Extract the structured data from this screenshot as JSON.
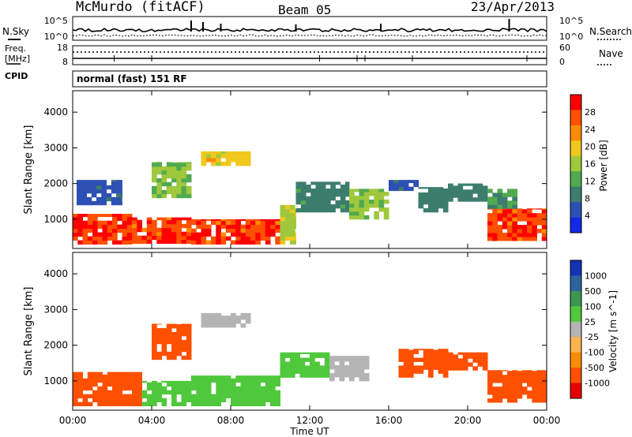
{
  "header": {
    "station": "McMurdo (fitACF)",
    "beam": "Beam 05",
    "date": "23/Apr/2013"
  },
  "top_panels": {
    "nsky_label": "N.Sky",
    "nsearch_label": "N.Search",
    "noise_ticks": [
      "10^5",
      "10^0"
    ],
    "freq_label_line1": "Freq.",
    "freq_label_line2": "[MHz]",
    "freq_ticks": [
      "18",
      "8"
    ],
    "nave_label": "Nave",
    "nave_ticks": [
      "60",
      "0"
    ],
    "cpid_label": "CPID",
    "cpid_value": "normal (fast) 151 RF"
  },
  "x_axis": {
    "title": "Time UT",
    "ticks": [
      "00:00",
      "04:00",
      "08:00",
      "12:00",
      "16:00",
      "20:00",
      "00:00"
    ]
  },
  "colors": {
    "power_scale": [
      "#1428e6",
      "#2d50b4",
      "#3c7d6e",
      "#50aa50",
      "#a0c83c",
      "#f0c81e",
      "#ff8c00",
      "#ff5000",
      "#ff0000"
    ],
    "velocity_scale": [
      "#e60000",
      "#ff5000",
      "#ff8c00",
      "#ffb450",
      "#b4b4b4",
      "#50c83c",
      "#3c9650",
      "#2d64a0",
      "#1432b4"
    ]
  },
  "chart_data": [
    {
      "type": "heatmap",
      "name": "Power",
      "ylabel": "Slant Range [km]",
      "xlabel": "",
      "xlim": [
        0,
        24
      ],
      "ylim": [
        180,
        4600
      ],
      "yticks": [
        1000,
        2000,
        3000,
        4000
      ],
      "colorbar": {
        "label": "Power [dB]",
        "ticks": [
          "4",
          "8",
          "12",
          "16",
          "20",
          "24",
          "28"
        ],
        "range": [
          0,
          30
        ]
      },
      "regions": [
        {
          "t": [
            0.0,
            3.0
          ],
          "r": [
            300,
            1150
          ],
          "v": 27
        },
        {
          "t": [
            3.0,
            6.0
          ],
          "r": [
            320,
            1050
          ],
          "v": 26
        },
        {
          "t": [
            6.0,
            10.5
          ],
          "r": [
            300,
            1000
          ],
          "v": 26
        },
        {
          "t": [
            10.5,
            11.3
          ],
          "r": [
            300,
            1400
          ],
          "v": 16
        },
        {
          "t": [
            11.3,
            14.0
          ],
          "r": [
            1200,
            2050
          ],
          "v": 9
        },
        {
          "t": [
            14.0,
            16.0
          ],
          "r": [
            1000,
            1850
          ],
          "v": 14
        },
        {
          "t": [
            16.0,
            17.5
          ],
          "r": [
            1800,
            2100
          ],
          "v": 6
        },
        {
          "t": [
            17.5,
            19.0
          ],
          "r": [
            1200,
            1900
          ],
          "v": 8
        },
        {
          "t": [
            19.0,
            21.0
          ],
          "r": [
            1500,
            2000
          ],
          "v": 8
        },
        {
          "t": [
            21.0,
            24.0
          ],
          "r": [
            400,
            1300
          ],
          "v": 26
        },
        {
          "t": [
            21.0,
            22.5
          ],
          "r": [
            1300,
            1850
          ],
          "v": 10
        },
        {
          "t": [
            4.0,
            6.0
          ],
          "r": [
            1600,
            2600
          ],
          "v": 14
        },
        {
          "t": [
            6.5,
            9.0
          ],
          "r": [
            2500,
            2900
          ],
          "v": 18
        },
        {
          "t": [
            0.2,
            2.5
          ],
          "r": [
            1400,
            2100
          ],
          "v": 6
        }
      ]
    },
    {
      "type": "heatmap",
      "name": "Velocity",
      "ylabel": "Slant Range [km]",
      "xlabel": "Time UT",
      "xlim": [
        0,
        24
      ],
      "ylim": [
        180,
        4600
      ],
      "yticks": [
        1000,
        2000,
        3000,
        4000
      ],
      "colorbar": {
        "label": "Velocity [m s^-1]",
        "ticks": [
          "1000",
          "500",
          "100",
          "25",
          "-25",
          "-100",
          "-500",
          "-1000"
        ],
        "range": [
          -1000,
          1000
        ]
      },
      "regions": [
        {
          "t": [
            0.0,
            3.5
          ],
          "r": [
            300,
            1250
          ],
          "v": -150
        },
        {
          "t": [
            3.5,
            6.0
          ],
          "r": [
            300,
            1000
          ],
          "v": 200
        },
        {
          "t": [
            6.0,
            10.5
          ],
          "r": [
            300,
            1150
          ],
          "v": 120
        },
        {
          "t": [
            10.5,
            13.0
          ],
          "r": [
            1100,
            1800
          ],
          "v": 250
        },
        {
          "t": [
            13.0,
            15.0
          ],
          "r": [
            1000,
            1700
          ],
          "v": 80
        },
        {
          "t": [
            16.5,
            19.0
          ],
          "r": [
            1100,
            1900
          ],
          "v": -300
        },
        {
          "t": [
            19.0,
            21.0
          ],
          "r": [
            1300,
            1800
          ],
          "v": -150
        },
        {
          "t": [
            21.0,
            24.0
          ],
          "r": [
            400,
            1300
          ],
          "v": -250
        },
        {
          "t": [
            4.0,
            6.0
          ],
          "r": [
            1600,
            2600
          ],
          "v": -120
        },
        {
          "t": [
            6.5,
            9.0
          ],
          "r": [
            2500,
            2900
          ],
          "v": 60
        }
      ]
    }
  ]
}
